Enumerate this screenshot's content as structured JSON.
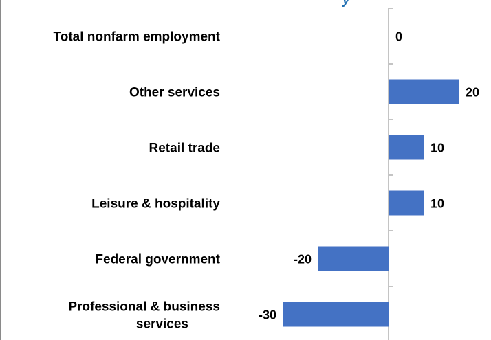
{
  "chart_data": {
    "type": "bar",
    "orientation": "horizontal",
    "title_fragment": "y",
    "categories": [
      "Total nonfarm employment",
      "Other services",
      "Retail trade",
      "Leisure & hospitality",
      "Federal government",
      "Professional & business services"
    ],
    "values": [
      0,
      20,
      10,
      10,
      -20,
      -30
    ],
    "value_labels": [
      "0",
      "20",
      "10",
      "10",
      "-20",
      "-30"
    ],
    "xlim": [
      -30,
      20
    ],
    "grid": false,
    "legend": "none",
    "colors": {
      "bar": "#4472C4",
      "axis": "#8a8a8a",
      "title": "#1f6fb2"
    }
  }
}
